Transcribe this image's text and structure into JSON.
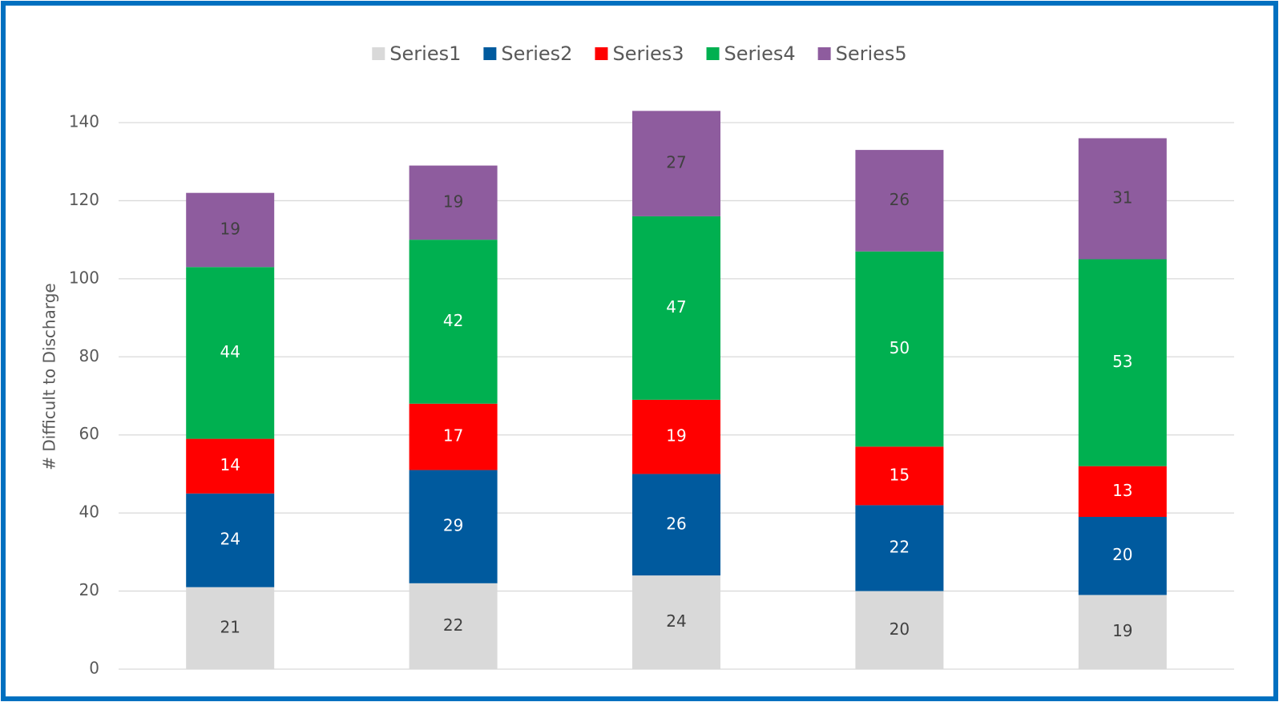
{
  "chart_data": {
    "type": "stacked_bar",
    "ylabel": "# Difficult to Discharge",
    "categories": [
      null,
      null,
      null,
      null,
      null
    ],
    "series": [
      {
        "name": "Series1",
        "color": "#d9d9d9",
        "label_color": "#404040",
        "values": [
          21,
          22,
          24,
          20,
          19
        ]
      },
      {
        "name": "Series2",
        "color": "#005a9e",
        "label_color": "#ffffff",
        "values": [
          24,
          29,
          26,
          22,
          20
        ]
      },
      {
        "name": "Series3",
        "color": "#ff0000",
        "label_color": "#ffffff",
        "values": [
          14,
          17,
          19,
          15,
          13
        ]
      },
      {
        "name": "Series4",
        "color": "#00b050",
        "label_color": "#ffffff",
        "values": [
          44,
          42,
          47,
          50,
          53
        ]
      },
      {
        "name": "Series5",
        "color": "#8e5c9e",
        "label_color": "#404040",
        "values": [
          19,
          19,
          27,
          26,
          31
        ]
      }
    ],
    "ylim": [
      0,
      140
    ],
    "yticks": [
      0,
      20,
      40,
      60,
      80,
      100,
      120,
      140
    ],
    "grid": true,
    "legend": "top",
    "border_color": "#0070c0"
  }
}
